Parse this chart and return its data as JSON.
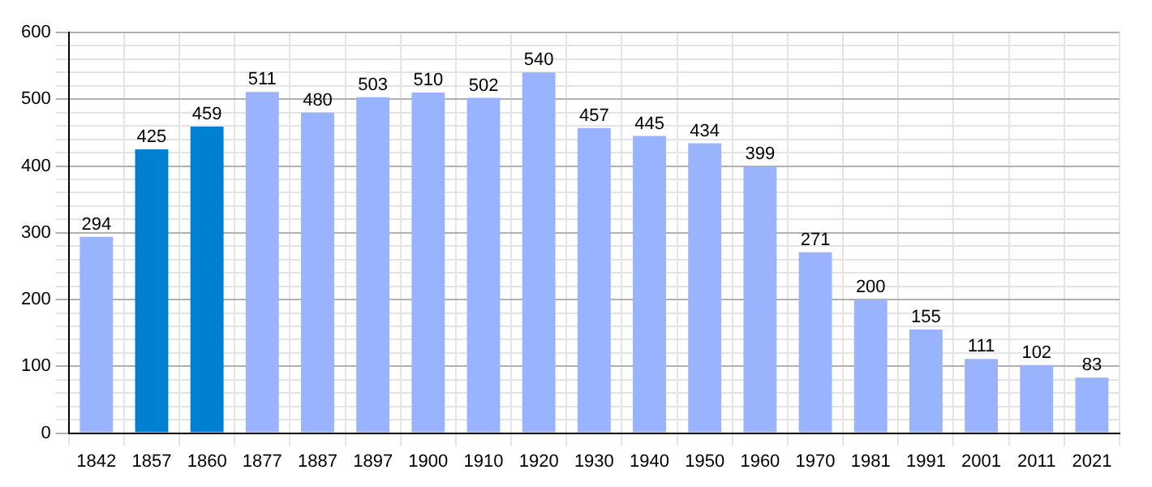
{
  "chart_data": {
    "type": "bar",
    "categories": [
      "1842",
      "1857",
      "1860",
      "1877",
      "1887",
      "1897",
      "1900",
      "1910",
      "1920",
      "1930",
      "1940",
      "1950",
      "1960",
      "1970",
      "1981",
      "1991",
      "2001",
      "2011",
      "2021"
    ],
    "values": [
      294,
      425,
      459,
      511,
      480,
      503,
      510,
      502,
      540,
      457,
      445,
      434,
      399,
      271,
      200,
      155,
      111,
      102,
      83
    ],
    "colors": [
      "#99b3ff",
      "#0080d0",
      "#0080d0",
      "#99b3ff",
      "#99b3ff",
      "#99b3ff",
      "#99b3ff",
      "#99b3ff",
      "#99b3ff",
      "#99b3ff",
      "#99b3ff",
      "#99b3ff",
      "#99b3ff",
      "#99b3ff",
      "#99b3ff",
      "#99b3ff",
      "#99b3ff",
      "#99b3ff",
      "#99b3ff"
    ],
    "ylim": [
      0,
      600
    ],
    "yticks": [
      0,
      {
        "value": 20,
        "label": null
      },
      {
        "value": 40,
        "label": null
      },
      {
        "value": 60,
        "label": null
      },
      {
        "value": 80,
        "label": null
      },
      100,
      {
        "value": 120,
        "label": null
      },
      {
        "value": 140,
        "label": null
      },
      {
        "value": 160,
        "label": null
      },
      {
        "value": 180,
        "label": null
      },
      200,
      {
        "value": 220,
        "label": null
      },
      {
        "value": 240,
        "label": null
      },
      {
        "value": 260,
        "label": null
      },
      {
        "value": 280,
        "label": null
      },
      300,
      {
        "value": 320,
        "label": null
      },
      {
        "value": 340,
        "label": null
      },
      {
        "value": 360,
        "label": null
      },
      {
        "value": 380,
        "label": null
      },
      400,
      {
        "value": 420,
        "label": null
      },
      {
        "value": 440,
        "label": null
      },
      {
        "value": 460,
        "label": null
      },
      {
        "value": 480,
        "label": null
      },
      500,
      {
        "value": 520,
        "label": null
      },
      {
        "value": 540,
        "label": null
      },
      {
        "value": 560,
        "label": null
      },
      {
        "value": 580,
        "label": null
      },
      600
    ],
    "grid": true,
    "data_labels": true
  }
}
